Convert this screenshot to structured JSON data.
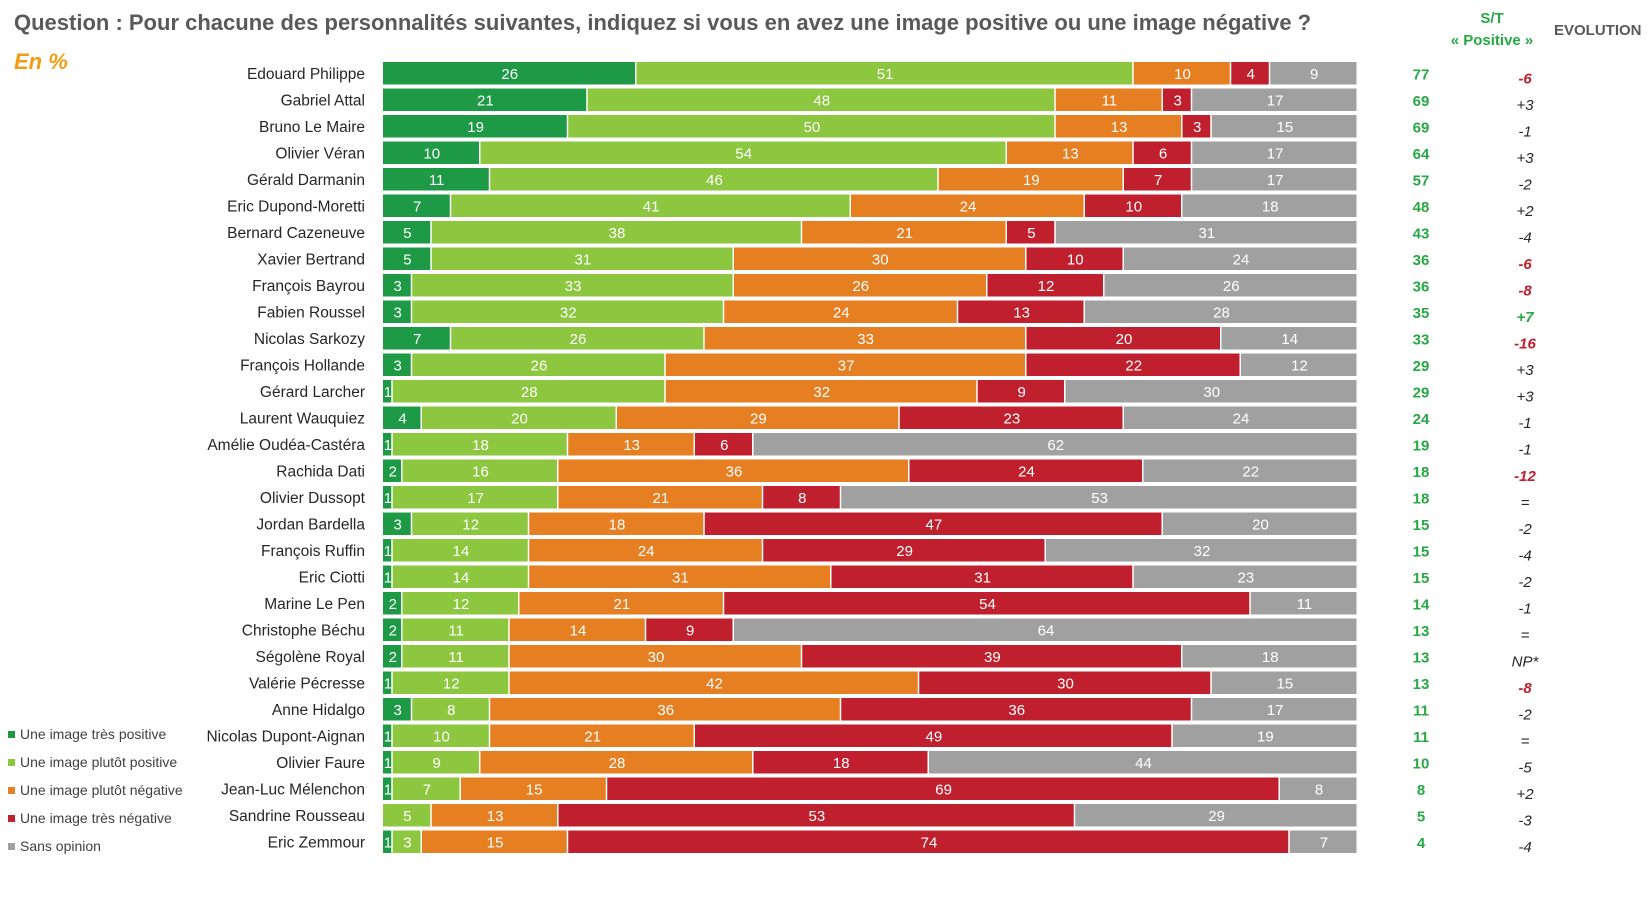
{
  "header": {
    "question": "Question : Pour chacune des personnalités suivantes, indiquez si vous en avez une image positive ou une image négative ?",
    "unit": "En %",
    "st_line1": "S/T",
    "st_line2": "« Positive »",
    "evolution": "EVOLUTION"
  },
  "legend": [
    {
      "label": "Une image très positive",
      "color": "#1e9a46"
    },
    {
      "label": "Une image plutôt positive",
      "color": "#8dc63f"
    },
    {
      "label": "Une image plutôt négative",
      "color": "#e67e22"
    },
    {
      "label": "Une image très négative",
      "color": "#c0202e"
    },
    {
      "label": "Sans opinion",
      "color": "#a0a0a0"
    }
  ],
  "chart_data": {
    "type": "bar",
    "stacked": true,
    "orientation": "horizontal",
    "categories": [
      "Edouard Philippe",
      "Gabriel Attal",
      "Bruno Le Maire",
      "Olivier Véran",
      "Gérald Darmanin",
      "Eric Dupond-Moretti",
      "Bernard Cazeneuve",
      "Xavier Bertrand",
      "François Bayrou",
      "Fabien Roussel",
      "Nicolas Sarkozy",
      "François Hollande",
      "Gérard Larcher",
      "Laurent Wauquiez",
      "Amélie Oudéa-Castéra",
      "Rachida Dati",
      "Olivier Dussopt",
      "Jordan Bardella",
      "François Ruffin",
      "Eric Ciotti",
      "Marine Le Pen",
      "Christophe Béchu",
      "Ségolène Royal",
      "Valérie Pécresse",
      "Anne Hidalgo",
      "Nicolas Dupont-Aignan",
      "Olivier Faure",
      "Jean-Luc Mélenchon",
      "Sandrine Rousseau",
      "Eric Zemmour"
    ],
    "series": [
      {
        "name": "Une image très positive",
        "color": "#1e9a46",
        "values": [
          26,
          21,
          19,
          10,
          11,
          7,
          5,
          5,
          3,
          3,
          7,
          3,
          1,
          4,
          1,
          2,
          1,
          3,
          1,
          1,
          2,
          2,
          2,
          1,
          3,
          1,
          1,
          1,
          0,
          1
        ]
      },
      {
        "name": "Une image plutôt positive",
        "color": "#8dc63f",
        "values": [
          51,
          48,
          50,
          54,
          46,
          41,
          38,
          31,
          33,
          32,
          26,
          26,
          28,
          20,
          18,
          16,
          17,
          12,
          14,
          14,
          12,
          11,
          11,
          12,
          8,
          10,
          9,
          7,
          5,
          3
        ]
      },
      {
        "name": "Une image plutôt négative",
        "color": "#e67e22",
        "values": [
          10,
          11,
          13,
          13,
          19,
          24,
          21,
          30,
          26,
          24,
          33,
          37,
          32,
          29,
          13,
          36,
          21,
          18,
          24,
          31,
          21,
          14,
          30,
          42,
          36,
          21,
          28,
          15,
          13,
          15
        ]
      },
      {
        "name": "Une image très négative",
        "color": "#c0202e",
        "values": [
          4,
          3,
          3,
          6,
          7,
          10,
          5,
          10,
          12,
          13,
          20,
          22,
          9,
          23,
          6,
          24,
          8,
          47,
          29,
          31,
          54,
          9,
          39,
          30,
          36,
          49,
          18,
          69,
          53,
          74
        ]
      },
      {
        "name": "Sans opinion",
        "color": "#a0a0a0",
        "values": [
          9,
          17,
          15,
          17,
          17,
          18,
          31,
          24,
          26,
          28,
          14,
          12,
          30,
          24,
          62,
          22,
          53,
          20,
          32,
          23,
          11,
          64,
          18,
          15,
          17,
          19,
          44,
          8,
          29,
          7
        ]
      }
    ],
    "st_positive": [
      "77",
      "69",
      "69",
      "64",
      "57",
      "48",
      "43",
      "36",
      "36",
      "35",
      "33",
      "29",
      "29",
      "24",
      "19",
      "18",
      "18",
      "15",
      "15",
      "15",
      "14",
      "13",
      "13",
      "13",
      "11",
      "11",
      "10",
      "8",
      "5",
      "4"
    ],
    "evolution": [
      "-6",
      "+3",
      "-1",
      "+3",
      "-2",
      "+2",
      "-4",
      "-6",
      "-8",
      "+7",
      "-16",
      "+3",
      "+3",
      "-1",
      "-1",
      "-12",
      "=",
      "-2",
      "-4",
      "-2",
      "-1",
      "=",
      "NP*",
      "-8",
      "-2",
      "=",
      "-5",
      "+2",
      "-3",
      "-4"
    ],
    "evolution_highlight": [
      true,
      false,
      false,
      false,
      false,
      false,
      false,
      true,
      true,
      true,
      true,
      false,
      false,
      false,
      false,
      true,
      false,
      false,
      false,
      false,
      false,
      false,
      false,
      true,
      false,
      false,
      false,
      false,
      false,
      false
    ],
    "evolution_colors": {
      "negative": "#c0202e",
      "positive": "#27a844",
      "neutral": "#262626"
    },
    "st_color": "#27a844"
  }
}
